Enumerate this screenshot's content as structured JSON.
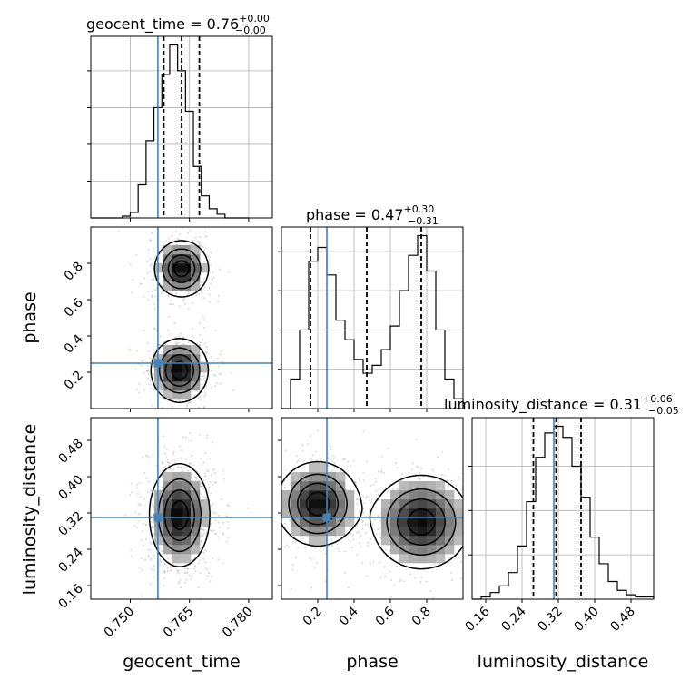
{
  "colors": {
    "truth": "#4682b4",
    "line": "#000000",
    "grid": "#b0b0b0",
    "scatter": "#9a9a9a"
  },
  "titles": {
    "geocent_time": {
      "main": "geocent_time = 0.76",
      "sup": "+0.00",
      "sub": "−0.00"
    },
    "phase": {
      "main": "phase = 0.47",
      "sup": "+0.30",
      "sub": "−0.31"
    },
    "luminosity_distance": {
      "main": "luminosity_distance = 0.31",
      "sup": "+0.06",
      "sub": "−0.05"
    }
  },
  "chart_data": {
    "type": "corner",
    "parameters": [
      "geocent_time",
      "phase",
      "luminosity_distance"
    ],
    "truths": {
      "geocent_time": 0.757,
      "phase": 0.25,
      "luminosity_distance": 0.31
    },
    "ranges": {
      "geocent_time": [
        0.74,
        0.786
      ],
      "phase": [
        0.0,
        1.0
      ],
      "luminosity_distance": [
        0.13,
        0.53
      ]
    },
    "ticks": {
      "geocent_time": [
        "0.750",
        "0.765",
        "0.780"
      ],
      "phase": [
        "0.2",
        "0.4",
        "0.6",
        "0.8"
      ],
      "luminosity_distance": [
        "0.16",
        "0.24",
        "0.32",
        "0.40",
        "0.48"
      ]
    },
    "axis_labels": {
      "x": [
        "geocent_time",
        "phase",
        "luminosity_distance"
      ],
      "y": [
        "phase",
        "luminosity_distance"
      ]
    },
    "histograms": {
      "geocent_time": {
        "edges": [
          0.74,
          0.742,
          0.744,
          0.746,
          0.748,
          0.75,
          0.752,
          0.754,
          0.756,
          0.758,
          0.76,
          0.762,
          0.764,
          0.766,
          0.768,
          0.77,
          0.772,
          0.774,
          0.776,
          0.778,
          0.78
        ],
        "counts": [
          0,
          0,
          0,
          0,
          1,
          3,
          18,
          42,
          60,
          78,
          94,
          80,
          58,
          28,
          12,
          5,
          2,
          0,
          0,
          0
        ],
        "quantiles": [
          0.7585,
          0.763,
          0.7675
        ],
        "grid_y": [
          20,
          40,
          60,
          80
        ]
      },
      "phase": {
        "edges": [
          0.0,
          0.05,
          0.1,
          0.15,
          0.2,
          0.25,
          0.3,
          0.35,
          0.4,
          0.45,
          0.5,
          0.55,
          0.6,
          0.65,
          0.7,
          0.75,
          0.8,
          0.85,
          0.9,
          0.95,
          1.0
        ],
        "counts": [
          0,
          15,
          40,
          75,
          82,
          68,
          45,
          35,
          25,
          18,
          22,
          30,
          42,
          60,
          78,
          88,
          70,
          40,
          15,
          5
        ],
        "quantiles": [
          0.16,
          0.47,
          0.77
        ],
        "grid_y": [
          20,
          40,
          60,
          80
        ]
      },
      "luminosity_distance": {
        "edges": [
          0.13,
          0.15,
          0.17,
          0.19,
          0.21,
          0.23,
          0.25,
          0.27,
          0.29,
          0.31,
          0.33,
          0.35,
          0.37,
          0.39,
          0.41,
          0.43,
          0.45,
          0.47,
          0.49,
          0.51,
          0.53
        ],
        "counts": [
          0,
          1,
          3,
          6,
          12,
          24,
          44,
          64,
          75,
          78,
          73,
          60,
          46,
          28,
          16,
          8,
          4,
          2,
          1,
          1
        ],
        "quantiles": [
          0.265,
          0.315,
          0.37
        ],
        "grid_y": [
          20,
          40,
          60
        ]
      }
    },
    "densities": [
      {
        "x": "geocent_time",
        "y": "phase",
        "modes": [
          {
            "cx": 0.763,
            "cy": 0.77,
            "sx": 0.0033,
            "sy": 0.075,
            "w": 1.0
          },
          {
            "cx": 0.7625,
            "cy": 0.21,
            "sx": 0.0035,
            "sy": 0.085,
            "w": 1.0
          }
        ],
        "contour_levels": [
          0.12,
          0.35,
          0.6,
          0.85
        ]
      },
      {
        "x": "geocent_time",
        "y": "luminosity_distance",
        "modes": [
          {
            "cx": 0.7625,
            "cy": 0.315,
            "sx": 0.0037,
            "sy": 0.055,
            "w": 1.0
          }
        ],
        "contour_levels": [
          0.12,
          0.35,
          0.6,
          0.85
        ]
      },
      {
        "x": "phase",
        "y": "luminosity_distance",
        "modes": [
          {
            "cx": 0.2,
            "cy": 0.34,
            "sx": 0.11,
            "sy": 0.045,
            "w": 1.0
          },
          {
            "cx": 0.77,
            "cy": 0.3,
            "sx": 0.13,
            "sy": 0.05,
            "w": 1.0
          }
        ],
        "contour_levels": [
          0.12,
          0.35,
          0.6,
          0.85
        ]
      }
    ]
  }
}
